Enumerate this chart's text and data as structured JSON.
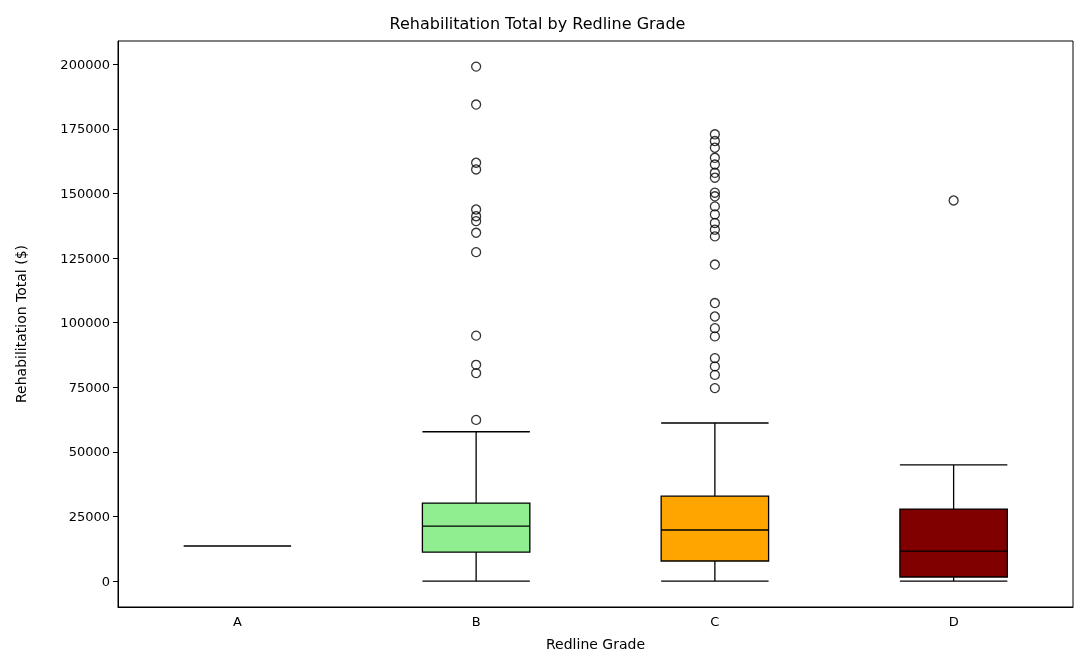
{
  "chart_data": {
    "type": "box",
    "title": "Rehabilitation Total by Redline Grade",
    "xlabel": "Redline Grade",
    "ylabel": "Rehabilitation Total ($)",
    "categories": [
      "A",
      "B",
      "C",
      "D"
    ],
    "colors": [
      "#000000",
      "#90ee90",
      "#ffa500",
      "#800000"
    ],
    "boxes": [
      {
        "low": 13600,
        "q1": 13600,
        "median": 13600,
        "q3": 13600,
        "high": 13600
      },
      {
        "low": 0,
        "q1": 11200,
        "median": 21300,
        "q3": 30200,
        "high": 57800,
        "outliers": [
          199100,
          184400,
          161900,
          159300,
          143800,
          141200,
          139300,
          134800,
          127300,
          95000,
          83700,
          80500,
          62400
        ]
      },
      {
        "low": 0,
        "q1": 7800,
        "median": 19800,
        "q3": 32900,
        "high": 61200,
        "outliers": [
          172900,
          170300,
          167700,
          163800,
          161200,
          158000,
          156100,
          150300,
          148900,
          145000,
          141900,
          138600,
          136000,
          133400,
          122500,
          107600,
          102400,
          97900,
          94700,
          86300,
          83100,
          79800,
          74700
        ]
      },
      {
        "low": 0,
        "q1": 1600,
        "median": 11600,
        "q3": 27900,
        "high": 45000,
        "outliers": [
          147300
        ]
      }
    ],
    "ylim": [
      -10000,
      209000
    ],
    "yticks": [
      0,
      25000,
      50000,
      75000,
      100000,
      125000,
      150000,
      175000,
      200000
    ],
    "grid": false
  }
}
